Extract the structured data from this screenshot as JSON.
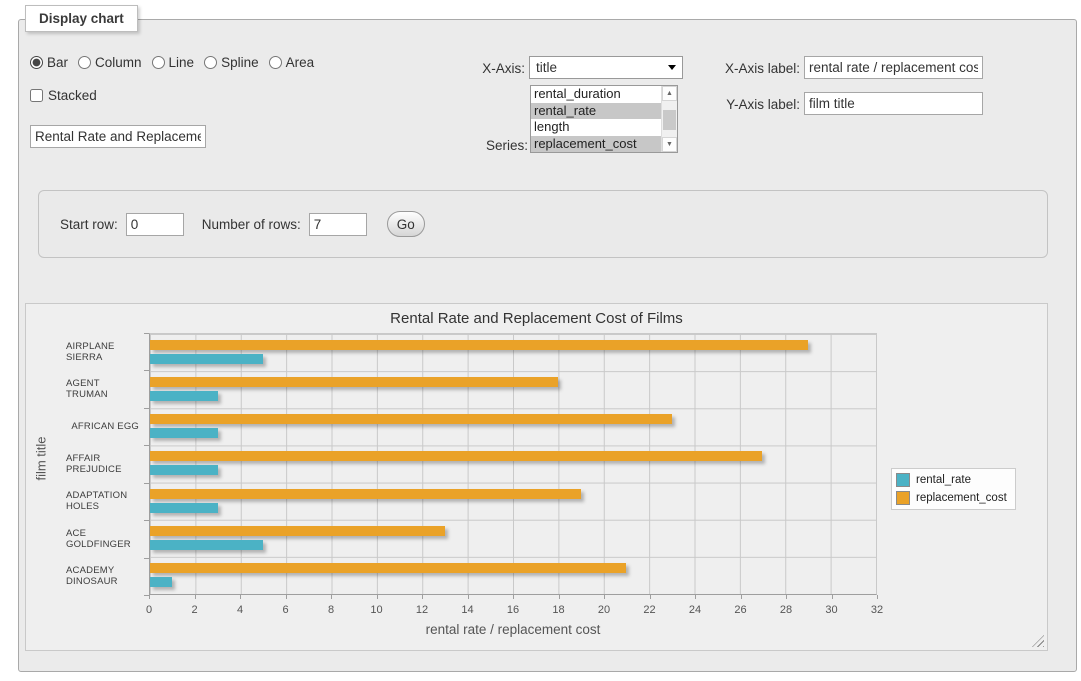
{
  "panel": {
    "legend_title": "Display chart"
  },
  "controls": {
    "chart_types": [
      "Bar",
      "Column",
      "Line",
      "Spline",
      "Area"
    ],
    "selected_type": "Bar",
    "stacked_label": "Stacked",
    "stacked_checked": false,
    "title_input_value": "Rental Rate and Replacemer",
    "x_axis_label": "X-Axis:",
    "x_axis_selected_value": "title",
    "series_label": "Series:",
    "series_options": [
      {
        "label": "rental_duration",
        "selected": false
      },
      {
        "label": "rental_rate",
        "selected": true
      },
      {
        "label": "length",
        "selected": false
      },
      {
        "label": "replacement_cost",
        "selected": true
      }
    ],
    "x_axis_label_label": "X-Axis label:",
    "x_axis_label_value": "rental rate / replacement cost",
    "y_axis_label_label": "Y-Axis label:",
    "y_axis_label_value": "film title"
  },
  "row_controls": {
    "start_row_label": "Start row:",
    "start_row_value": "0",
    "num_rows_label": "Number of rows:",
    "num_rows_value": "7",
    "go_label": "Go"
  },
  "chart_data": {
    "type": "bar",
    "orientation": "horizontal",
    "title": "Rental Rate and Replacement Cost of Films",
    "categories": [
      "AIRPLANE SIERRA",
      "AGENT TRUMAN",
      "AFRICAN EGG",
      "AFFAIR PREJUDICE",
      "ADAPTATION HOLES",
      "ACE GOLDFINGER",
      "ACADEMY DINOSAUR"
    ],
    "series": [
      {
        "name": "rental_rate",
        "color": "#4bb2c5",
        "values": [
          4.99,
          2.99,
          2.99,
          2.99,
          2.99,
          4.99,
          0.99
        ]
      },
      {
        "name": "replacement_cost",
        "color": "#EAA228",
        "values": [
          28.99,
          17.99,
          22.99,
          26.99,
          18.99,
          12.99,
          20.99
        ]
      }
    ],
    "bar_order_in_group_top_to_bottom": [
      "replacement_cost",
      "rental_rate"
    ],
    "xlabel": "rental rate / replacement cost",
    "ylabel": "film title",
    "xlim": [
      0,
      32
    ],
    "xtick_step": 2,
    "grid": true,
    "legend_position": "right",
    "plot_background": "#efefef"
  }
}
